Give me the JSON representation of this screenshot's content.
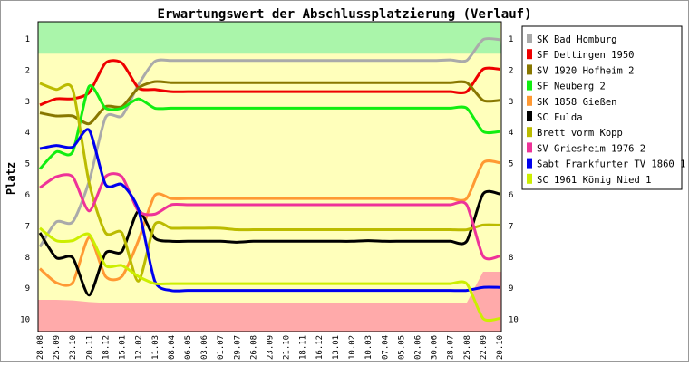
{
  "chart_data": {
    "type": "line",
    "title": "Erwartungswert der Abschlussplatzierung (Verlauf)",
    "xlabel": "",
    "ylabel": "Platz",
    "ylim": [
      1,
      10
    ],
    "y_inverted": true,
    "yticks": [
      "1",
      "2",
      "3",
      "4",
      "5",
      "6",
      "7",
      "8",
      "9",
      "10"
    ],
    "grid": false,
    "legend_position": "right",
    "x": [
      "28.08",
      "25.09",
      "23.10",
      "20.11",
      "18.12",
      "15.01",
      "12.02",
      "11.03",
      "08.04",
      "06.05",
      "03.06",
      "01.07",
      "29.07",
      "26.08",
      "23.09",
      "21.10",
      "18.11",
      "16.12",
      "13.01",
      "10.02",
      "10.03",
      "07.04",
      "05.05",
      "02.06",
      "30.06",
      "28.07",
      "25.08",
      "22.09",
      "20.10"
    ],
    "bands": [
      {
        "name": "promotion",
        "color": "#aaf5aa",
        "upper": [
          1.5,
          1.5,
          1.5,
          1.5,
          1.5,
          1.5,
          1.5,
          1.5,
          1.5,
          1.5,
          1.5,
          1.5,
          1.5,
          1.5,
          1.5,
          1.5,
          1.5,
          1.5,
          1.5,
          1.5,
          1.5,
          1.5,
          1.5,
          1.5,
          1.5,
          1.5,
          1.5,
          1.5,
          1.5
        ]
      },
      {
        "name": "relegation",
        "color": "#ffaaaa",
        "lower": [
          9.4,
          9.4,
          9.42,
          9.47,
          9.5,
          9.5,
          9.5,
          9.5,
          9.5,
          9.5,
          9.5,
          9.5,
          9.5,
          9.5,
          9.5,
          9.5,
          9.5,
          9.5,
          9.5,
          9.5,
          9.5,
          9.5,
          9.5,
          9.5,
          9.5,
          9.5,
          9.5,
          8.5,
          8.5
        ]
      }
    ],
    "middle_band_color": "#ffffbb",
    "series": [
      {
        "name": "SK Bad Homburg",
        "color": "#aaaaaa",
        "values": [
          7.7,
          6.9,
          6.9,
          5.6,
          3.55,
          3.5,
          2.5,
          1.75,
          1.72,
          1.72,
          1.72,
          1.72,
          1.72,
          1.72,
          1.72,
          1.72,
          1.72,
          1.72,
          1.72,
          1.72,
          1.72,
          1.72,
          1.72,
          1.72,
          1.72,
          1.7,
          1.72,
          1.05,
          1.05
        ]
      },
      {
        "name": "SF Dettingen 1950",
        "color": "#ee0000",
        "values": [
          3.15,
          2.95,
          2.95,
          2.75,
          1.8,
          1.8,
          2.6,
          2.65,
          2.72,
          2.72,
          2.72,
          2.72,
          2.72,
          2.72,
          2.72,
          2.72,
          2.72,
          2.72,
          2.72,
          2.72,
          2.72,
          2.72,
          2.72,
          2.72,
          2.72,
          2.72,
          2.72,
          2.0,
          2.0
        ]
      },
      {
        "name": "SV 1920 Hofheim 2",
        "color": "#887700",
        "values": [
          3.4,
          3.5,
          3.5,
          3.75,
          3.2,
          3.2,
          2.6,
          2.4,
          2.43,
          2.43,
          2.43,
          2.43,
          2.43,
          2.43,
          2.43,
          2.43,
          2.43,
          2.43,
          2.43,
          2.43,
          2.43,
          2.43,
          2.43,
          2.43,
          2.43,
          2.43,
          2.43,
          3.0,
          3.0
        ]
      },
      {
        "name": "SF Neuberg 2",
        "color": "#11ee11",
        "values": [
          5.2,
          4.65,
          4.65,
          2.55,
          3.25,
          3.25,
          2.95,
          3.25,
          3.25,
          3.25,
          3.25,
          3.25,
          3.25,
          3.25,
          3.25,
          3.25,
          3.25,
          3.25,
          3.25,
          3.25,
          3.25,
          3.25,
          3.25,
          3.25,
          3.25,
          3.25,
          3.25,
          4.0,
          4.0
        ]
      },
      {
        "name": "SK 1858 Gießen",
        "color": "#ff9933",
        "values": [
          8.4,
          8.85,
          8.85,
          7.4,
          8.65,
          8.65,
          7.5,
          6.05,
          6.15,
          6.15,
          6.15,
          6.15,
          6.15,
          6.15,
          6.15,
          6.15,
          6.15,
          6.15,
          6.15,
          6.15,
          6.15,
          6.15,
          6.15,
          6.15,
          6.15,
          6.15,
          6.15,
          5.0,
          5.0
        ]
      },
      {
        "name": "SC Fulda",
        "color": "#000000",
        "values": [
          7.25,
          8.05,
          8.05,
          9.25,
          7.9,
          7.85,
          6.55,
          7.42,
          7.52,
          7.52,
          7.52,
          7.52,
          7.55,
          7.52,
          7.52,
          7.52,
          7.52,
          7.52,
          7.52,
          7.52,
          7.5,
          7.52,
          7.52,
          7.52,
          7.52,
          7.52,
          7.52,
          6.0,
          6.0
        ]
      },
      {
        "name": "Brett vorm Kopp",
        "color": "#bbbb00",
        "values": [
          2.45,
          2.65,
          2.65,
          5.65,
          7.25,
          7.25,
          8.8,
          6.98,
          7.1,
          7.1,
          7.1,
          7.1,
          7.15,
          7.15,
          7.15,
          7.15,
          7.15,
          7.15,
          7.15,
          7.15,
          7.15,
          7.15,
          7.15,
          7.15,
          7.15,
          7.15,
          7.15,
          7.0,
          7.0
        ]
      },
      {
        "name": "SV Griesheim 1976 2",
        "color": "#ee3399",
        "values": [
          5.8,
          5.45,
          5.45,
          6.55,
          5.45,
          5.45,
          6.55,
          6.65,
          6.35,
          6.35,
          6.35,
          6.35,
          6.35,
          6.35,
          6.35,
          6.35,
          6.35,
          6.35,
          6.35,
          6.35,
          6.35,
          6.35,
          6.35,
          6.35,
          6.35,
          6.35,
          6.35,
          8.0,
          8.0
        ]
      },
      {
        "name": "Sabt Frankfurter TV 1860 1",
        "color": "#0000ee",
        "values": [
          4.55,
          4.45,
          4.5,
          3.95,
          5.7,
          5.7,
          6.5,
          8.8,
          9.1,
          9.1,
          9.1,
          9.1,
          9.1,
          9.1,
          9.1,
          9.1,
          9.1,
          9.1,
          9.1,
          9.1,
          9.1,
          9.1,
          9.1,
          9.1,
          9.1,
          9.1,
          9.1,
          9.0,
          9.0
        ]
      },
      {
        "name": "SC 1961 König Nied 1",
        "color": "#ccee00",
        "values": [
          7.1,
          7.5,
          7.5,
          7.3,
          8.3,
          8.3,
          8.65,
          8.88,
          8.88,
          8.88,
          8.88,
          8.88,
          8.88,
          8.88,
          8.88,
          8.88,
          8.88,
          8.88,
          8.88,
          8.88,
          8.88,
          8.88,
          8.88,
          8.88,
          8.88,
          8.88,
          8.88,
          10.0,
          10.0
        ]
      }
    ]
  }
}
